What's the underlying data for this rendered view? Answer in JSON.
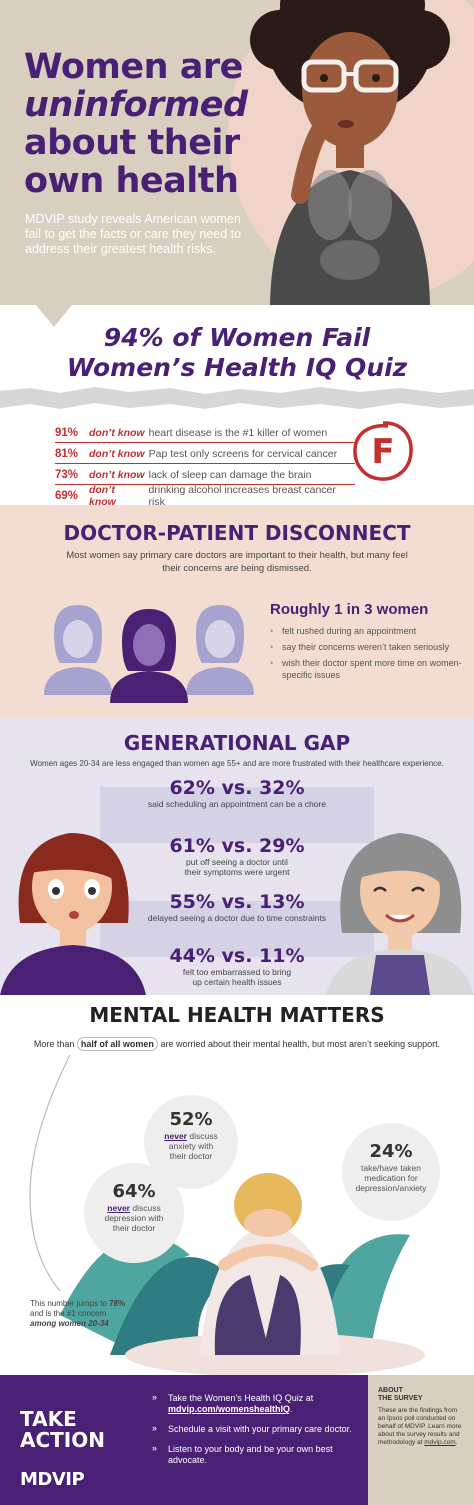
{
  "colors": {
    "purple": "#4a2074",
    "red": "#c23030",
    "tan": "#d9cfc0",
    "pink": "#f3ddd3",
    "lavender": "#e6e3ef"
  },
  "hero": {
    "title_line1": "Women are",
    "title_line2": "uninformed",
    "title_line3": "about their",
    "title_line4": "own health",
    "subtitle": "MDVIP study reveals American women fail to get the facts or care they need to address their greatest health risks."
  },
  "quiz": {
    "title_line1": "94% of Women Fail",
    "title_line2": "Women’s Health IQ Quiz",
    "dont_know": "don’t know",
    "grade": "F",
    "rows": [
      {
        "pct": "91%",
        "text": "heart disease is the #1 killer of women"
      },
      {
        "pct": "81%",
        "text": "Pap test only screens for cervical cancer"
      },
      {
        "pct": "73%",
        "text": "lack of sleep can damage the brain"
      },
      {
        "pct": "69%",
        "text": "drinking alcohol increases breast cancer risk"
      }
    ]
  },
  "doctor": {
    "title": "DOCTOR-PATIENT DISCONNECT",
    "intro": "Most women say primary care doctors are important to their health, but many feel their concerns are being dismissed.",
    "headline": "Roughly 1 in 3 women",
    "bullets": [
      "felt rushed during an appointment",
      "say their concerns weren’t taken seriously",
      "wish their doctor spent more time on women-specific issues"
    ]
  },
  "gen": {
    "title": "GENERATIONAL GAP",
    "intro": "Women ages 20-34 are less engaged than women age 55+ and are more frustrated with their healthcare experience.",
    "stats": [
      {
        "big": "62% vs. 32%",
        "small": "said scheduling an appointment can be a chore"
      },
      {
        "big": "61% vs. 29%",
        "small": "put off seeing a doctor until their symptoms were urgent"
      },
      {
        "big": "55% vs. 13%",
        "small": "delayed seeing a doctor due to time constraints"
      },
      {
        "big": "44% vs. 11%",
        "small": "felt too embarrassed to bring up certain health issues"
      }
    ]
  },
  "mental": {
    "title": "MENTAL HEALTH MATTERS",
    "intro_pre": "More than ",
    "intro_em": "half of all women",
    "intro_post": " are worried about their mental health, but most aren’t seeking support.",
    "b1": {
      "big": "52%",
      "u": "never",
      "small": " discuss anxiety with their doctor"
    },
    "b2": {
      "big": "24%",
      "small": "take/have taken medication for depression/anxiety"
    },
    "b3": {
      "big": "64%",
      "u": "never",
      "small": " discuss depression with their doctor"
    },
    "note_pre": "This number jumps to ",
    "note_bold1": "78%",
    "note_mid": " and is the #1 concern ",
    "note_bold2": "among women 20-34"
  },
  "footer": {
    "take": "TAKE",
    "action": "ACTION",
    "brand": "MDVIP",
    "action1_pre": "Take the Women’s Health IQ Quiz at ",
    "action1_link": "mdvip.com/womenshealthIQ",
    "action1_post": ".",
    "action2": "Schedule a visit with your primary care doctor.",
    "action3": "Listen to your body and be your own best advocate.",
    "about_title1": "ABOUT",
    "about_title2": "THE SURVEY",
    "about_text": "These are the findings from an Ipsos poll conducted on behalf of MDVIP. Learn more about the survey results and methodology at ",
    "about_link": "mdvip.com",
    "about_end": "."
  }
}
